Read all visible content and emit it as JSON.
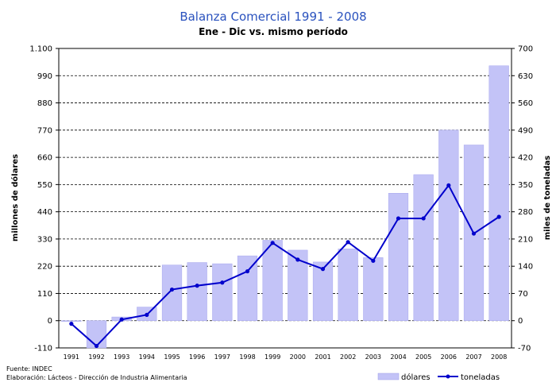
{
  "chart_data": {
    "type": "bar+line",
    "title": "Balanza Comercial 1991 - 2008",
    "subtitle": "Ene - Dic vs. mismo período",
    "categories": [
      "1991",
      "1992",
      "1993",
      "1994",
      "1995",
      "1996",
      "1997",
      "1998",
      "1999",
      "2000",
      "2001",
      "2002",
      "2003",
      "2004",
      "2005",
      "2006",
      "2007",
      "2008"
    ],
    "y_left": {
      "label": "millones de dólares",
      "range": [
        -110,
        1100
      ],
      "ticks": [
        "-110",
        "0",
        "110",
        "220",
        "330",
        "440",
        "550",
        "660",
        "770",
        "880",
        "990",
        "1.100"
      ],
      "tick_values": [
        -110,
        0,
        110,
        220,
        330,
        440,
        550,
        660,
        770,
        880,
        990,
        1100
      ]
    },
    "y_right": {
      "label": "miles de toneladas",
      "range": [
        -70,
        700
      ],
      "ticks": [
        "-70",
        "0",
        "70",
        "140",
        "210",
        "280",
        "350",
        "420",
        "490",
        "560",
        "630",
        "700"
      ],
      "tick_values": [
        -70,
        0,
        70,
        140,
        210,
        280,
        350,
        420,
        490,
        560,
        630,
        700
      ]
    },
    "grid": "horizontal dashed",
    "legend_position": "bottom-right",
    "series": [
      {
        "name": "dólares",
        "kind": "bar",
        "axis": "left",
        "color": "#c3c3f7",
        "values": [
          -2,
          -110,
          15,
          55,
          225,
          235,
          230,
          262,
          325,
          285,
          237,
          290,
          255,
          515,
          590,
          770,
          710,
          1030
        ]
      },
      {
        "name": "toneladas",
        "kind": "line",
        "axis": "right",
        "color": "#0000cc",
        "values": [
          -8,
          -65,
          3,
          15,
          80,
          90,
          98,
          127,
          200,
          157,
          133,
          202,
          154,
          263,
          263,
          348,
          224,
          267
        ]
      }
    ]
  },
  "footer": {
    "source": "Fuente: INDEC",
    "elaboration": "Elaboración: Lácteos - Dirección de Industria Alimentaria"
  }
}
